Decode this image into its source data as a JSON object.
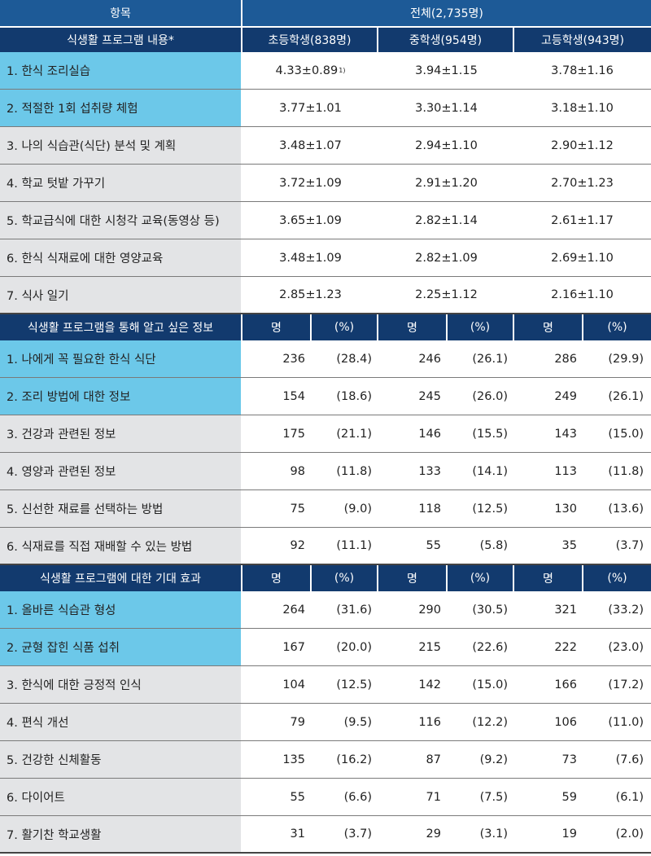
{
  "header": {
    "item": "항목",
    "total": "전체(2,735명)",
    "section1_title": "식생활 프로그램 내용*",
    "groups": [
      "초등학생(838명)",
      "중학생(954명)",
      "고등학생(943명)"
    ]
  },
  "section1": {
    "rows": [
      {
        "label": "1. 한식 조리실습",
        "v": [
          "4.33±0.89",
          "3.94±1.15",
          "3.78±1.16"
        ],
        "note": "1)"
      },
      {
        "label": "2. 적절한 1회 섭취량 체험",
        "v": [
          "3.77±1.01",
          "3.30±1.14",
          "3.18±1.10"
        ]
      },
      {
        "label": "3. 나의 식습관(식단) 분석 및 계획",
        "v": [
          "3.48±1.07",
          "2.94±1.10",
          "2.90±1.12"
        ]
      },
      {
        "label": "4. 학교 텃밭 가꾸기",
        "v": [
          "3.72±1.09",
          "2.91±1.20",
          "2.70±1.23"
        ]
      },
      {
        "label": "5. 학교급식에 대한 시청각 교육(동영상 등)",
        "v": [
          "3.65±1.09",
          "2.82±1.14",
          "2.61±1.17"
        ]
      },
      {
        "label": "6. 한식 식재료에 대한 영양교육",
        "v": [
          "3.48±1.09",
          "2.82±1.09",
          "2.69±1.10"
        ]
      },
      {
        "label": "7. 식사 일기",
        "v": [
          "2.85±1.23",
          "2.25±1.12",
          "2.16±1.10"
        ]
      }
    ]
  },
  "section2": {
    "title": "식생활 프로그램을 통해 알고 싶은 정보",
    "cols": [
      "명",
      "(%)",
      "명",
      "(%)",
      "명",
      "(%)"
    ],
    "rows": [
      {
        "label": "1. 나에게 꼭 필요한 한식 식단",
        "v": [
          "236",
          "(28.4)",
          "246",
          "(26.1)",
          "286",
          "(29.9)"
        ]
      },
      {
        "label": "2. 조리 방법에 대한 정보",
        "v": [
          "154",
          "(18.6)",
          "245",
          "(26.0)",
          "249",
          "(26.1)"
        ]
      },
      {
        "label": "3. 건강과 관련된 정보",
        "v": [
          "175",
          "(21.1)",
          "146",
          "(15.5)",
          "143",
          "(15.0)"
        ]
      },
      {
        "label": "4. 영양과 관련된 정보",
        "v": [
          "98",
          "(11.8)",
          "133",
          "(14.1)",
          "113",
          "(11.8)"
        ]
      },
      {
        "label": "5. 신선한 재료를 선택하는 방법",
        "v": [
          "75",
          "(9.0)",
          "118",
          "(12.5)",
          "130",
          "(13.6)"
        ]
      },
      {
        "label": "6. 식재료를 직접 재배할 수 있는 방법",
        "v": [
          "92",
          "(11.1)",
          "55",
          "(5.8)",
          "35",
          "(3.7)"
        ]
      }
    ]
  },
  "section3": {
    "title": "식생활 프로그램에 대한 기대 효과",
    "cols": [
      "명",
      "(%)",
      "명",
      "(%)",
      "명",
      "(%)"
    ],
    "rows": [
      {
        "label": "1. 올바른 식습관 형성",
        "v": [
          "264",
          "(31.6)",
          "290",
          "(30.5)",
          "321",
          "(33.2)"
        ]
      },
      {
        "label": "2. 균형 잡힌 식품 섭취",
        "v": [
          "167",
          "(20.0)",
          "215",
          "(22.6)",
          "222",
          "(23.0)"
        ]
      },
      {
        "label": "3. 한식에 대한 긍정적 인식",
        "v": [
          "104",
          "(12.5)",
          "142",
          "(15.0)",
          "166",
          "(17.2)"
        ]
      },
      {
        "label": "4. 편식 개선",
        "v": [
          "79",
          "(9.5)",
          "116",
          "(12.2)",
          "106",
          "(11.0)"
        ]
      },
      {
        "label": "5. 건강한 신체활동",
        "v": [
          "135",
          "(16.2)",
          "87",
          "(9.2)",
          "73",
          "(7.6)"
        ]
      },
      {
        "label": "6. 다이어트",
        "v": [
          "55",
          "(6.6)",
          "71",
          "(7.5)",
          "59",
          "(6.1)"
        ]
      },
      {
        "label": "7. 활기찬 학교생활",
        "v": [
          "31",
          "(3.7)",
          "29",
          "(3.1)",
          "19",
          "(2.0)"
        ]
      }
    ]
  }
}
